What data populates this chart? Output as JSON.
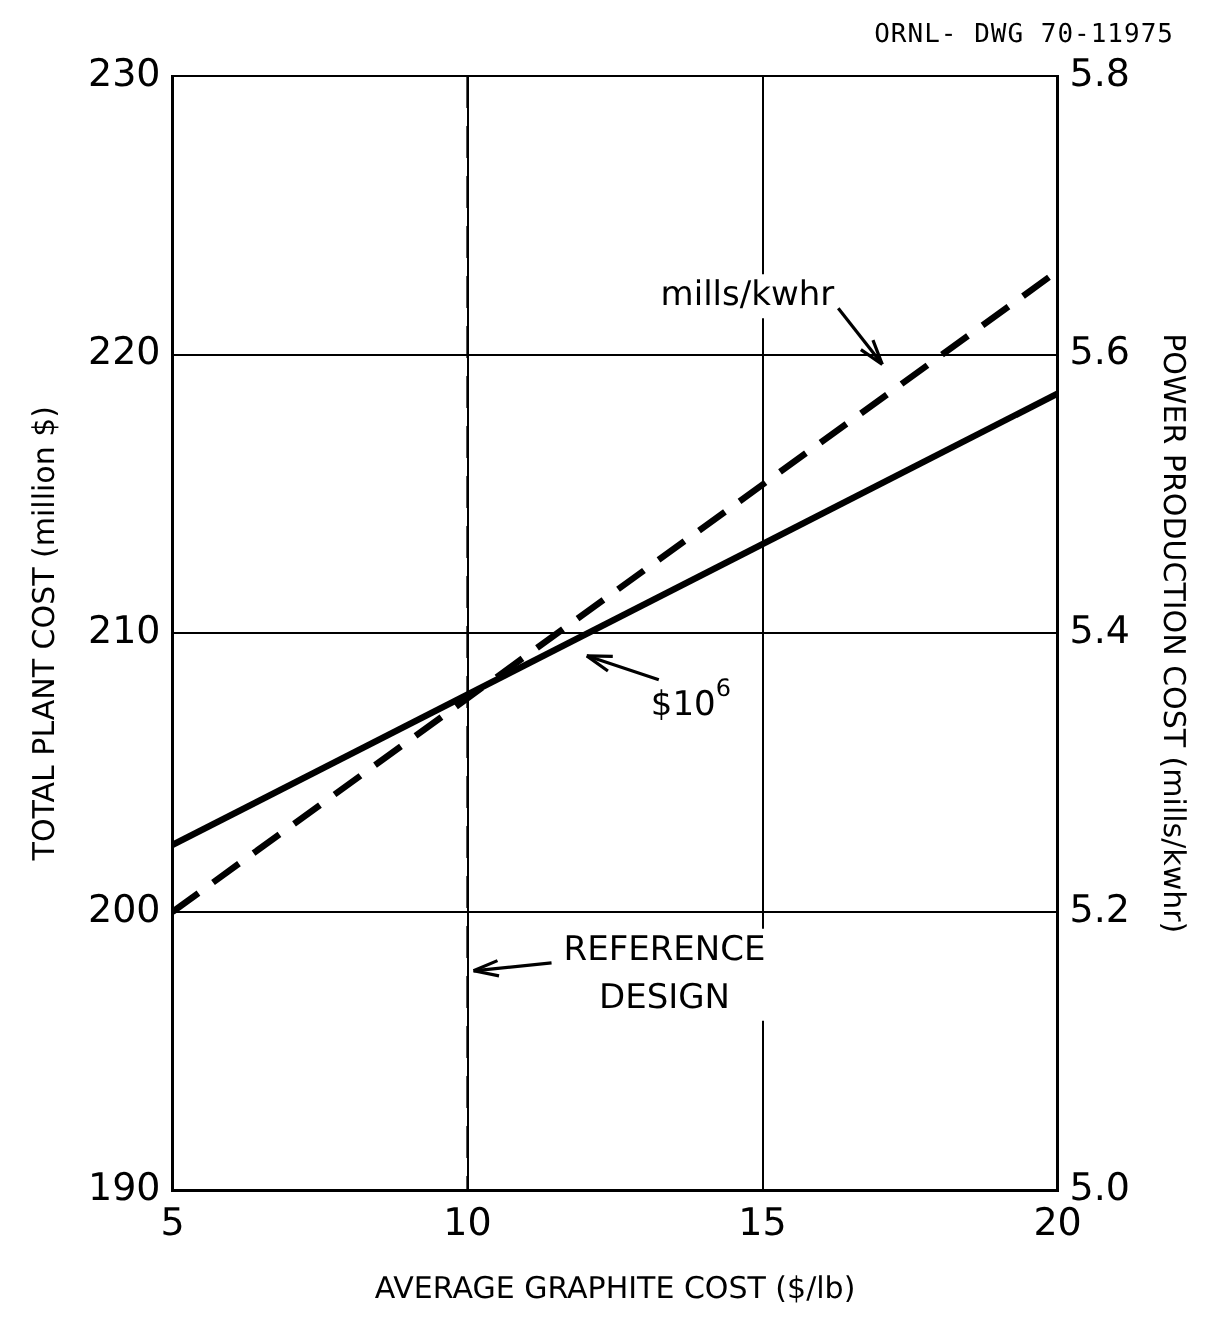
{
  "chart_data": {
    "type": "line",
    "xlabel": "AVERAGE GRAPHITE COST ($/lb)",
    "ylabel": "TOTAL PLANT COST (million $)",
    "y2label": "POWER PRODUCTION COST (mills/kwhr)",
    "annotations": [
      "ORNL- DWG 70-11975"
    ],
    "x": [
      5,
      20
    ],
    "series": [
      {
        "name": "$10$^{6}$",
        "color": "#000000",
        "values": [
          202.4,
          218.6
        ],
        "line_style": "solid"
      },
      {
        "name": "mills/kwhr",
        "color": "#000000",
        "values": [
          5.2,
          5.66
        ],
        "axis": "y2",
        "line_style": "dashed"
      }
    ],
    "xlim": [
      5,
      20
    ],
    "xticks": [
      5,
      10,
      15,
      20
    ],
    "ylim": [
      190,
      230
    ],
    "yticks": [
      190,
      200,
      210,
      220,
      230
    ],
    "y2lim": [
      5.0,
      5.8
    ],
    "y2ticks": [
      {
        "value": 5.0,
        "label": "5.0"
      },
      {
        "value": 5.2,
        "label": "5.2"
      },
      {
        "value": 5.4,
        "label": "5.4"
      },
      {
        "value": 5.6,
        "label": "5.6"
      },
      {
        "value": 5.8,
        "label": "5.8"
      }
    ],
    "ref_lines": [
      {
        "axis": "x",
        "value": 10,
        "label": "REFERENCE DESIGN",
        "line_style": "dashed",
        "color": "#000000"
      }
    ],
    "grid": true,
    "legend": false,
    "marker": "none"
  }
}
